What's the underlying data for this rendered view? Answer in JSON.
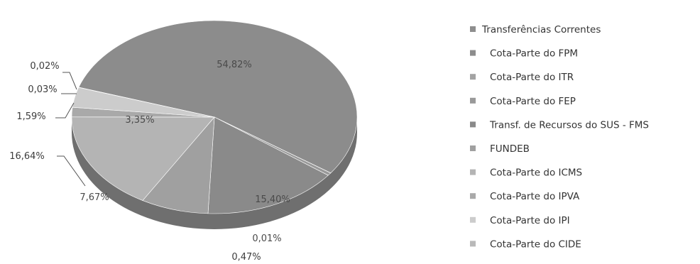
{
  "chart_data": {
    "type": "pie",
    "style": "3d",
    "legend_position": "right",
    "slices": [
      {
        "name": "Transferências Correntes",
        "label": "",
        "value": null,
        "color": "#8e8e8e"
      },
      {
        "name": "Cota-Parte do FPM",
        "label": "54,82%",
        "value": 54.82,
        "color": "#8c8c8c"
      },
      {
        "name": "Cota-Parte do ITR",
        "label": "0,01%",
        "value": 0.01,
        "color": "#a3a3a3"
      },
      {
        "name": "Cota-Parte do FEP",
        "label": "0,47%",
        "value": 0.47,
        "color": "#999999"
      },
      {
        "name": "Transf. de Recursos do SUS - FMS",
        "label": "15,40%",
        "value": 15.4,
        "color": "#8a8a8a"
      },
      {
        "name": "FUNDEB",
        "label": "7,67%",
        "value": 7.67,
        "color": "#a0a0a0"
      },
      {
        "name": "Cota-Parte do ICMS",
        "label": "16,64%",
        "value": 16.64,
        "color": "#b4b4b4"
      },
      {
        "name": "Cota-Parte do IPVA",
        "label": "1,59%",
        "value": 1.59,
        "color": "#a9a9a9"
      },
      {
        "name": "Cota-Parte do IPI",
        "label": "3,35%",
        "value": 3.35,
        "color": "#cccccc"
      },
      {
        "name": "Cota-Parte do CIDE",
        "label": "0,03%",
        "value": 0.03,
        "color": "#b9b9b9"
      }
    ],
    "extra_labels": [
      "0,02%"
    ]
  }
}
